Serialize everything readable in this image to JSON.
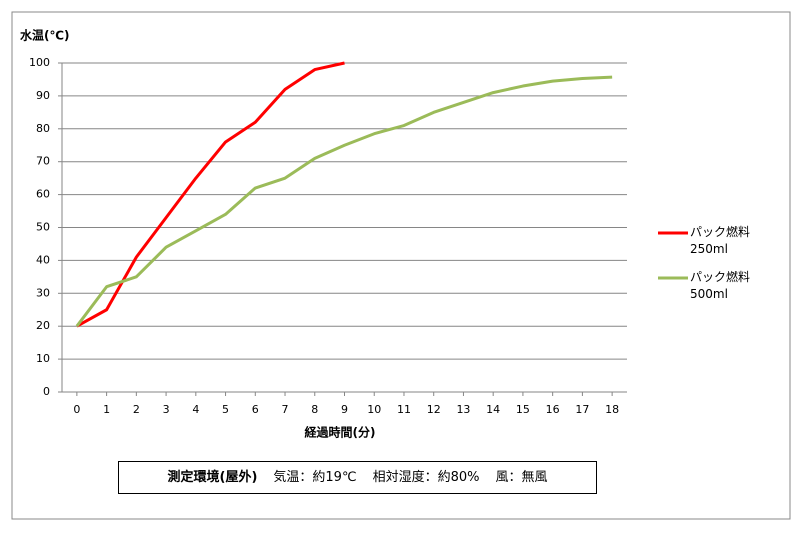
{
  "chart_data": {
    "type": "line",
    "y_label": "水温(℃)",
    "x_label": "経過時間(分)",
    "x": [
      0,
      1,
      2,
      3,
      4,
      5,
      6,
      7,
      8,
      9,
      10,
      11,
      12,
      13,
      14,
      15,
      16,
      17,
      18
    ],
    "series": [
      {
        "name": "パック燃料 250ml",
        "color": "#ff0000",
        "values": [
          20,
          25,
          41,
          53,
          65,
          76,
          82,
          92,
          98,
          100,
          null,
          null,
          null,
          null,
          null,
          null,
          null,
          null,
          null
        ]
      },
      {
        "name": "パック燃料 500ml",
        "color": "#9bbb59",
        "values": [
          20,
          32,
          35,
          44,
          49,
          54,
          62,
          65,
          71,
          75,
          78.5,
          81,
          85,
          88,
          91,
          93,
          94.5,
          95.3,
          95.7
        ]
      }
    ],
    "xlim": [
      -0.5,
      18.5
    ],
    "xticks": [
      0,
      1,
      2,
      3,
      4,
      5,
      6,
      7,
      8,
      9,
      10,
      11,
      12,
      13,
      14,
      15,
      16,
      17,
      18
    ],
    "ylim": [
      0,
      100
    ],
    "yticks": [
      0,
      10,
      20,
      30,
      40,
      50,
      60,
      70,
      80,
      90,
      100
    ],
    "grid": true,
    "legend": "right",
    "note": {
      "label": "測定環境(屋外)",
      "items": [
        "気温：約19℃",
        "相対湿度：約80%",
        "風：無風"
      ]
    }
  }
}
